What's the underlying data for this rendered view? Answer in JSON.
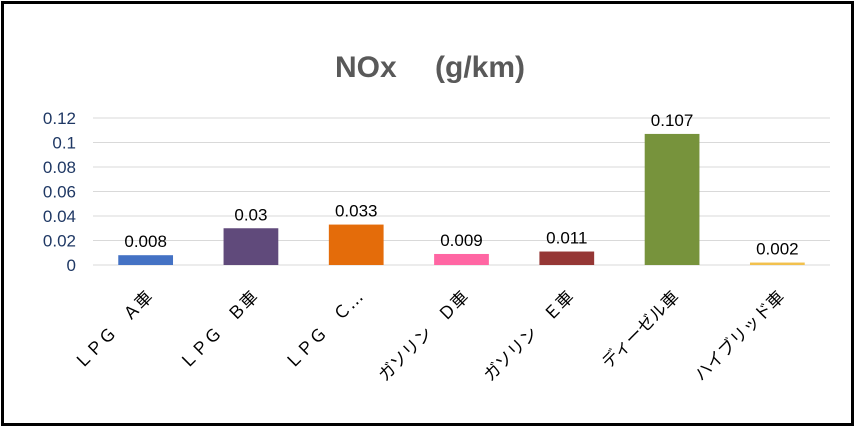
{
  "chart_data": {
    "type": "bar",
    "title": "NOx　 (g/km)",
    "categories": [
      "ＬＰＧ　Ａ車",
      "ＬＰＧ　Ｂ車",
      "ＬＰＧ　Ｃ…",
      "ガソリン　Ｄ車",
      "ガソリン　Ｅ車",
      "ディーゼル車",
      "ハイブリッド車"
    ],
    "values": [
      0.008,
      0.03,
      0.033,
      0.009,
      0.011,
      0.107,
      0.002
    ],
    "data_labels": [
      "0.008",
      "0.03",
      "0.033",
      "0.009",
      "0.011",
      "0.107",
      "0.002"
    ],
    "colors": [
      "#4472c4",
      "#604a7b",
      "#e46c0a",
      "#ff66a3",
      "#953735",
      "#77933c",
      "#f2c14e"
    ],
    "yticks": [
      "0",
      "0.02",
      "0.04",
      "0.06",
      "0.08",
      "0.1",
      "0.12"
    ],
    "ylim": [
      0,
      0.12
    ],
    "grid": true,
    "legend": "none"
  }
}
